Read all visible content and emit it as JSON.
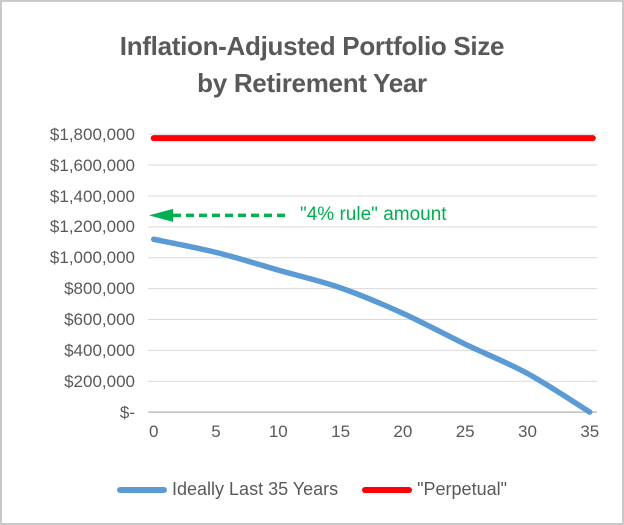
{
  "chart_data": {
    "type": "line",
    "title": "Inflation-Adjusted Portfolio Size by Retirement Year",
    "title_lines": [
      "Inflation-Adjusted Portfolio Size",
      "by Retirement Year"
    ],
    "xlabel": "",
    "ylabel": "",
    "xlim": [
      0,
      35
    ],
    "ylim": [
      0,
      1800000
    ],
    "grid": true,
    "x": [
      0,
      5,
      10,
      15,
      20,
      25,
      30,
      35
    ],
    "series": [
      {
        "name": "Ideally Last 35 Years",
        "color": "#5B9BD5",
        "values": [
          1120000,
          1035000,
          920000,
          805000,
          640000,
          440000,
          250000,
          0
        ]
      },
      {
        "name": "\"Perpetual\"",
        "color": "#FF0000",
        "values": [
          1775000,
          1775000,
          1775000,
          1775000,
          1775000,
          1775000,
          1775000,
          1775000
        ]
      }
    ],
    "annotation": {
      "text": "\"4% rule\" amount",
      "value": 1275000,
      "color": "#00B050",
      "arrow_direction": "left"
    },
    "y_axis": {
      "ticks": [
        {
          "label": "$1,800,000",
          "value": 1800000
        },
        {
          "label": "$1,600,000",
          "value": 1600000
        },
        {
          "label": "$1,400,000",
          "value": 1400000
        },
        {
          "label": "$1,200,000",
          "value": 1200000
        },
        {
          "label": "$1,000,000",
          "value": 1000000
        },
        {
          "label": "$800,000",
          "value": 800000
        },
        {
          "label": "$600,000",
          "value": 600000
        },
        {
          "label": "$400,000",
          "value": 400000
        },
        {
          "label": "$200,000",
          "value": 200000
        },
        {
          "label": "$-",
          "value": 0
        }
      ]
    },
    "x_axis": {
      "ticks": [
        {
          "label": "0",
          "value": 0
        },
        {
          "label": "5",
          "value": 5
        },
        {
          "label": "10",
          "value": 10
        },
        {
          "label": "15",
          "value": 15
        },
        {
          "label": "20",
          "value": 20
        },
        {
          "label": "25",
          "value": 25
        },
        {
          "label": "30",
          "value": 30
        },
        {
          "label": "35",
          "value": 35
        }
      ]
    },
    "legend": {
      "position": "bottom",
      "items": [
        {
          "label": "Ideally Last 35 Years",
          "color": "#5B9BD5"
        },
        {
          "label": "\"Perpetual\"",
          "color": "#FF0000"
        }
      ]
    },
    "colors": {
      "title_text": "#595959",
      "axis_text": "#595959",
      "gridline": "#D9D9D9",
      "axis_line": "#BFBFBF",
      "background": "#FFFFFF",
      "border": "#C9C9C9"
    }
  }
}
